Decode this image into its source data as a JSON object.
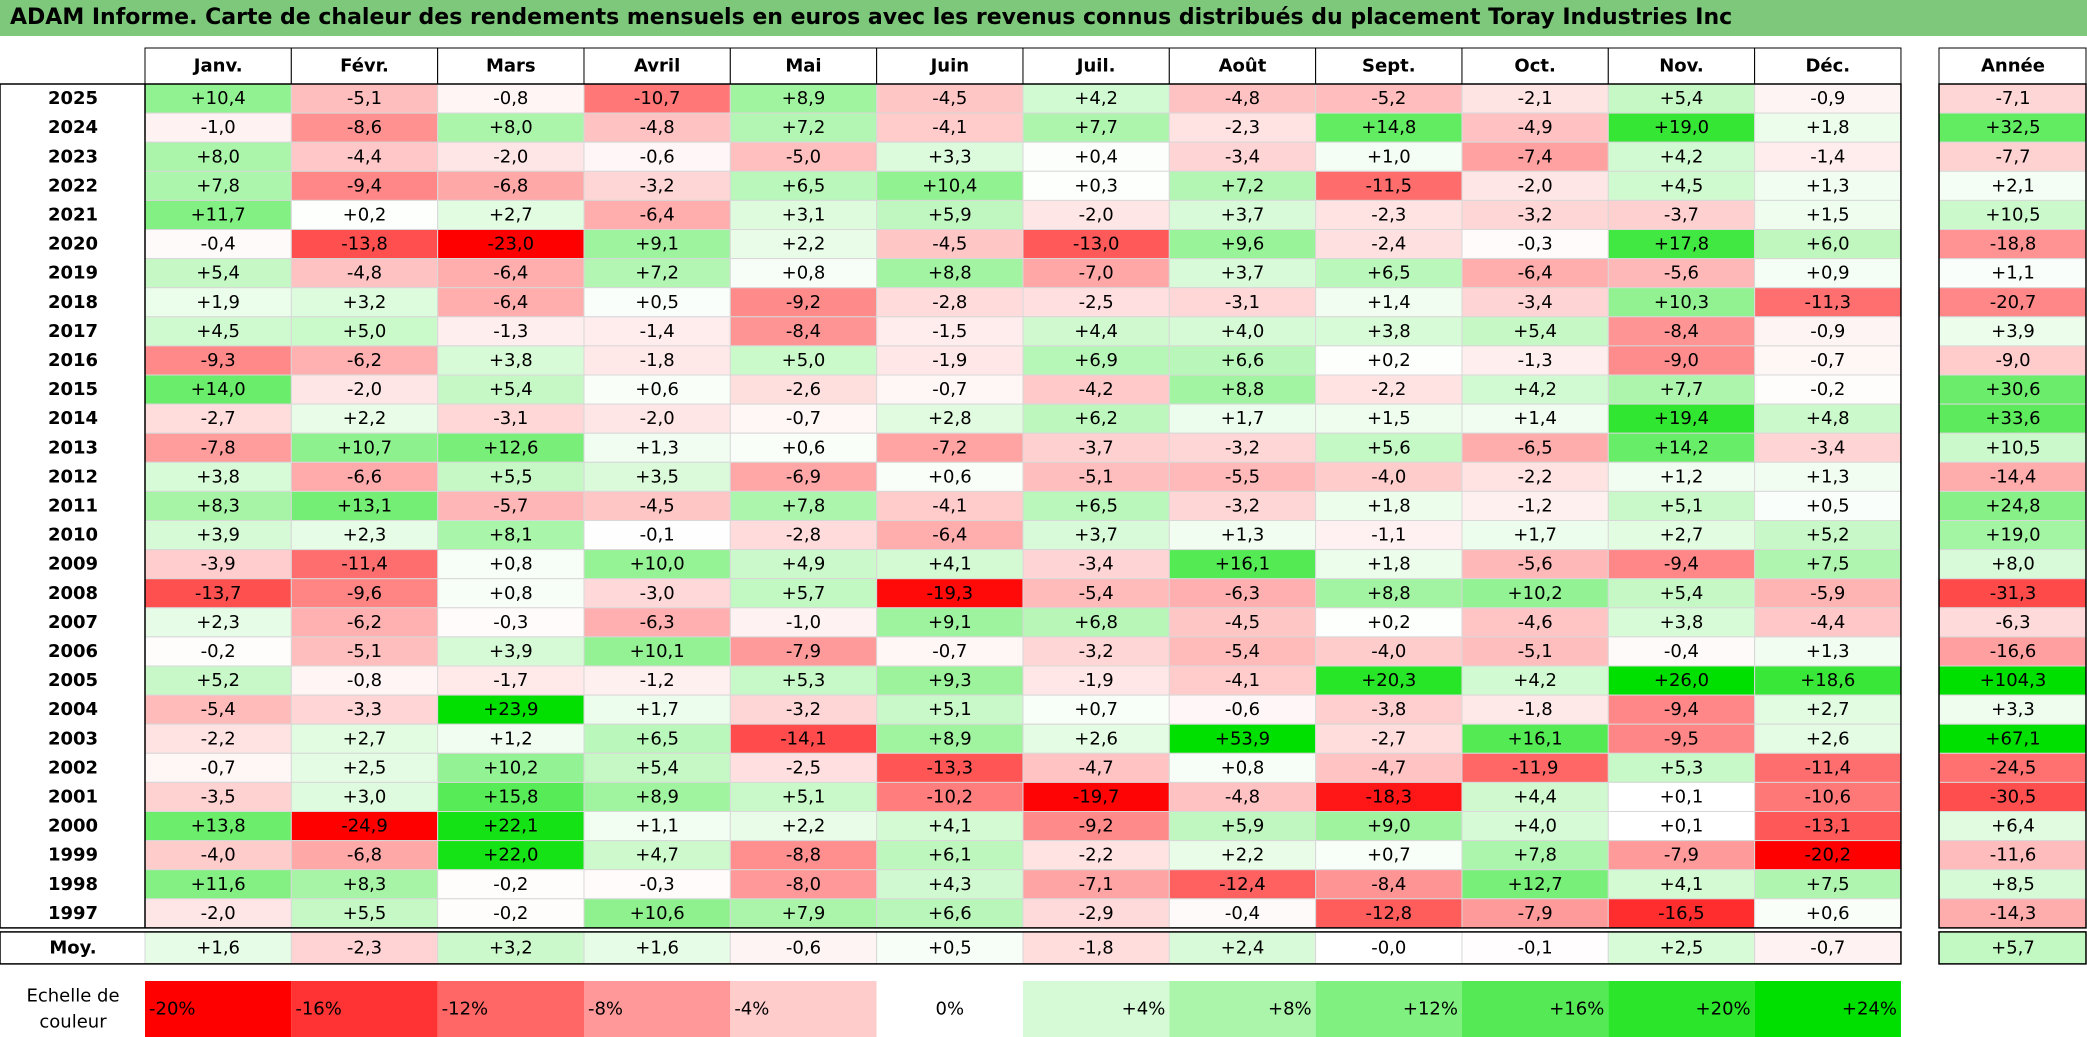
{
  "title": "ADAM Informe. Carte de chaleur des rendements mensuels en euros avec les revenus connus distribués du placement Toray Industries Inc",
  "chart_data": {
    "type": "heatmap",
    "columns": [
      "Janv.",
      "Févr.",
      "Mars",
      "Avril",
      "Mai",
      "Juin",
      "Juil.",
      "Août",
      "Sept.",
      "Oct.",
      "Nov.",
      "Déc."
    ],
    "annual_header": "Année",
    "rows": [
      {
        "year": "2025",
        "values": [
          "+10,4",
          "-5,1",
          "-0,8",
          "-10,7",
          "+8,9",
          "-4,5",
          "+4,2",
          "-4,8",
          "-5,2",
          "-2,1",
          "+5,4",
          "-0,9"
        ],
        "annual": "-7,1"
      },
      {
        "year": "2024",
        "values": [
          "-1,0",
          "-8,6",
          "+8,0",
          "-4,8",
          "+7,2",
          "-4,1",
          "+7,7",
          "-2,3",
          "+14,8",
          "-4,9",
          "+19,0",
          "+1,8"
        ],
        "annual": "+32,5"
      },
      {
        "year": "2023",
        "values": [
          "+8,0",
          "-4,4",
          "-2,0",
          "-0,6",
          "-5,0",
          "+3,3",
          "+0,4",
          "-3,4",
          "+1,0",
          "-7,4",
          "+4,2",
          "-1,4"
        ],
        "annual": "-7,7"
      },
      {
        "year": "2022",
        "values": [
          "+7,8",
          "-9,4",
          "-6,8",
          "-3,2",
          "+6,5",
          "+10,4",
          "+0,3",
          "+7,2",
          "-11,5",
          "-2,0",
          "+4,5",
          "+1,3"
        ],
        "annual": "+2,1"
      },
      {
        "year": "2021",
        "values": [
          "+11,7",
          "+0,2",
          "+2,7",
          "-6,4",
          "+3,1",
          "+5,9",
          "-2,0",
          "+3,7",
          "-2,3",
          "-3,2",
          "-3,7",
          "+1,5"
        ],
        "annual": "+10,5"
      },
      {
        "year": "2020",
        "values": [
          "-0,4",
          "-13,8",
          "-23,0",
          "+9,1",
          "+2,2",
          "-4,5",
          "-13,0",
          "+9,6",
          "-2,4",
          "-0,3",
          "+17,8",
          "+6,0"
        ],
        "annual": "-18,8"
      },
      {
        "year": "2019",
        "values": [
          "+5,4",
          "-4,8",
          "-6,4",
          "+7,2",
          "+0,8",
          "+8,8",
          "-7,0",
          "+3,7",
          "+6,5",
          "-6,4",
          "-5,6",
          "+0,9"
        ],
        "annual": "+1,1"
      },
      {
        "year": "2018",
        "values": [
          "+1,9",
          "+3,2",
          "-6,4",
          "+0,5",
          "-9,2",
          "-2,8",
          "-2,5",
          "-3,1",
          "+1,4",
          "-3,4",
          "+10,3",
          "-11,3"
        ],
        "annual": "-20,7"
      },
      {
        "year": "2017",
        "values": [
          "+4,5",
          "+5,0",
          "-1,3",
          "-1,4",
          "-8,4",
          "-1,5",
          "+4,4",
          "+4,0",
          "+3,8",
          "+5,4",
          "-8,4",
          "-0,9"
        ],
        "annual": "+3,9"
      },
      {
        "year": "2016",
        "values": [
          "-9,3",
          "-6,2",
          "+3,8",
          "-1,8",
          "+5,0",
          "-1,9",
          "+6,9",
          "+6,6",
          "+0,2",
          "-1,3",
          "-9,0",
          "-0,7"
        ],
        "annual": "-9,0"
      },
      {
        "year": "2015",
        "values": [
          "+14,0",
          "-2,0",
          "+5,4",
          "+0,6",
          "-2,6",
          "-0,7",
          "-4,2",
          "+8,8",
          "-2,2",
          "+4,2",
          "+7,7",
          "-0,2"
        ],
        "annual": "+30,6"
      },
      {
        "year": "2014",
        "values": [
          "-2,7",
          "+2,2",
          "-3,1",
          "-2,0",
          "-0,7",
          "+2,8",
          "+6,2",
          "+1,7",
          "+1,5",
          "+1,4",
          "+19,4",
          "+4,8"
        ],
        "annual": "+33,6"
      },
      {
        "year": "2013",
        "values": [
          "-7,8",
          "+10,7",
          "+12,6",
          "+1,3",
          "+0,6",
          "-7,2",
          "-3,7",
          "-3,2",
          "+5,6",
          "-6,5",
          "+14,2",
          "-3,4"
        ],
        "annual": "+10,5"
      },
      {
        "year": "2012",
        "values": [
          "+3,8",
          "-6,6",
          "+5,5",
          "+3,5",
          "-6,9",
          "+0,6",
          "-5,1",
          "-5,5",
          "-4,0",
          "-2,2",
          "+1,2",
          "+1,3"
        ],
        "annual": "-14,4"
      },
      {
        "year": "2011",
        "values": [
          "+8,3",
          "+13,1",
          "-5,7",
          "-4,5",
          "+7,8",
          "-4,1",
          "+6,5",
          "-3,2",
          "+1,8",
          "-1,2",
          "+5,1",
          "+0,5"
        ],
        "annual": "+24,8"
      },
      {
        "year": "2010",
        "values": [
          "+3,9",
          "+2,3",
          "+8,1",
          "-0,1",
          "-2,8",
          "-6,4",
          "+3,7",
          "+1,3",
          "-1,1",
          "+1,7",
          "+2,7",
          "+5,2"
        ],
        "annual": "+19,0"
      },
      {
        "year": "2009",
        "values": [
          "-3,9",
          "-11,4",
          "+0,8",
          "+10,0",
          "+4,9",
          "+4,1",
          "-3,4",
          "+16,1",
          "+1,8",
          "-5,6",
          "-9,4",
          "+7,5"
        ],
        "annual": "+8,0"
      },
      {
        "year": "2008",
        "values": [
          "-13,7",
          "-9,6",
          "+0,8",
          "-3,0",
          "+5,7",
          "-19,3",
          "-5,4",
          "-6,3",
          "+8,8",
          "+10,2",
          "+5,4",
          "-5,9"
        ],
        "annual": "-31,3"
      },
      {
        "year": "2007",
        "values": [
          "+2,3",
          "-6,2",
          "-0,3",
          "-6,3",
          "-1,0",
          "+9,1",
          "+6,8",
          "-4,5",
          "+0,2",
          "-4,6",
          "+3,8",
          "-4,4"
        ],
        "annual": "-6,3"
      },
      {
        "year": "2006",
        "values": [
          "-0,2",
          "-5,1",
          "+3,9",
          "+10,1",
          "-7,9",
          "-0,7",
          "-3,2",
          "-5,4",
          "-4,0",
          "-5,1",
          "-0,4",
          "+1,3"
        ],
        "annual": "-16,6"
      },
      {
        "year": "2005",
        "values": [
          "+5,2",
          "-0,8",
          "-1,7",
          "-1,2",
          "+5,3",
          "+9,3",
          "-1,9",
          "-4,1",
          "+20,3",
          "+4,2",
          "+26,0",
          "+18,6"
        ],
        "annual": "+104,3"
      },
      {
        "year": "2004",
        "values": [
          "-5,4",
          "-3,3",
          "+23,9",
          "+1,7",
          "-3,2",
          "+5,1",
          "+0,7",
          "-0,6",
          "-3,8",
          "-1,8",
          "-9,4",
          "+2,7"
        ],
        "annual": "+3,3"
      },
      {
        "year": "2003",
        "values": [
          "-2,2",
          "+2,7",
          "+1,2",
          "+6,5",
          "-14,1",
          "+8,9",
          "+2,6",
          "+53,9",
          "-2,7",
          "+16,1",
          "-9,5",
          "+2,6"
        ],
        "annual": "+67,1"
      },
      {
        "year": "2002",
        "values": [
          "-0,7",
          "+2,5",
          "+10,2",
          "+5,4",
          "-2,5",
          "-13,3",
          "-4,7",
          "+0,8",
          "-4,7",
          "-11,9",
          "+5,3",
          "-11,4"
        ],
        "annual": "-24,5"
      },
      {
        "year": "2001",
        "values": [
          "-3,5",
          "+3,0",
          "+15,8",
          "+8,9",
          "+5,1",
          "-10,2",
          "-19,7",
          "-4,8",
          "-18,3",
          "+4,4",
          "+0,1",
          "-10,6"
        ],
        "annual": "-30,5"
      },
      {
        "year": "2000",
        "values": [
          "+13,8",
          "-24,9",
          "+22,1",
          "+1,1",
          "+2,2",
          "+4,1",
          "-9,2",
          "+5,9",
          "+9,0",
          "+4,0",
          "+0,1",
          "-13,1"
        ],
        "annual": "+6,4"
      },
      {
        "year": "1999",
        "values": [
          "-4,0",
          "-6,8",
          "+22,0",
          "+4,7",
          "-8,8",
          "+6,1",
          "-2,2",
          "+2,2",
          "+0,7",
          "+7,8",
          "-7,9",
          "-20,2"
        ],
        "annual": "-11,6"
      },
      {
        "year": "1998",
        "values": [
          "+11,6",
          "+8,3",
          "-0,2",
          "-0,3",
          "-8,0",
          "+4,3",
          "-7,1",
          "-12,4",
          "-8,4",
          "+12,7",
          "+4,1",
          "+7,5"
        ],
        "annual": "+8,5"
      },
      {
        "year": "1997",
        "values": [
          "-2,0",
          "+5,5",
          "-0,2",
          "+10,6",
          "+7,9",
          "+6,6",
          "-2,9",
          "-0,4",
          "-12,8",
          "-7,9",
          "-16,5",
          "+0,6"
        ],
        "annual": "-14,3"
      }
    ],
    "average": {
      "label": "Moy.",
      "values": [
        "+1,6",
        "-2,3",
        "+3,2",
        "+1,6",
        "-0,6",
        "+0,5",
        "-1,8",
        "+2,4",
        "-0,0",
        "-0,1",
        "+2,5",
        "-0,7"
      ],
      "annual": "+5,7"
    },
    "scale": {
      "label_line1": "Echelle de",
      "label_line2": "couleur",
      "stops": [
        "-20%",
        "-16%",
        "-12%",
        "-8%",
        "-4%",
        "0%",
        "+4%",
        "+8%",
        "+12%",
        "+16%",
        "+20%",
        "+24%"
      ],
      "stop_values": [
        -20,
        -16,
        -12,
        -8,
        -4,
        0,
        4,
        8,
        12,
        16,
        20,
        24
      ]
    },
    "colors": {
      "negative_max": "#ff0000",
      "positive_max": "#00e000",
      "neutral": "#ffffff",
      "title_bar": "#7dc87a"
    }
  }
}
